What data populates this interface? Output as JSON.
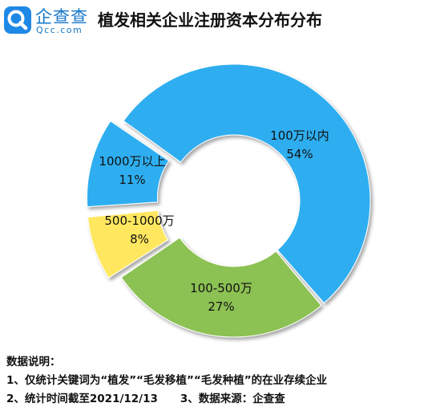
{
  "header": {
    "logo_cn": "企查查",
    "logo_en": "Qcc.com",
    "title": "植发相关企业注册资本分布分布"
  },
  "chart_data": {
    "type": "donut",
    "title": "植发相关企业注册资本分布分布",
    "segments": [
      {
        "name": "100万以内",
        "value": 54,
        "label": "54%",
        "color": "#2daef0"
      },
      {
        "name": "100-500万",
        "value": 27,
        "label": "27%",
        "color": "#8cc152"
      },
      {
        "name": "500-1000万",
        "value": 8,
        "label": "8%",
        "color": "#ffe75e"
      },
      {
        "name": "1000万以上",
        "value": 11,
        "label": "11%",
        "color": "#2daef0"
      }
    ]
  },
  "notes": {
    "heading": "数据说明：",
    "line1": "1、仅统计关键词为“植发”“毛发移植”“毛发种植”的在业存续企业",
    "line2a": "2、统计时间截至2021/12/13",
    "line2b": "3、数据来源：企查查"
  }
}
